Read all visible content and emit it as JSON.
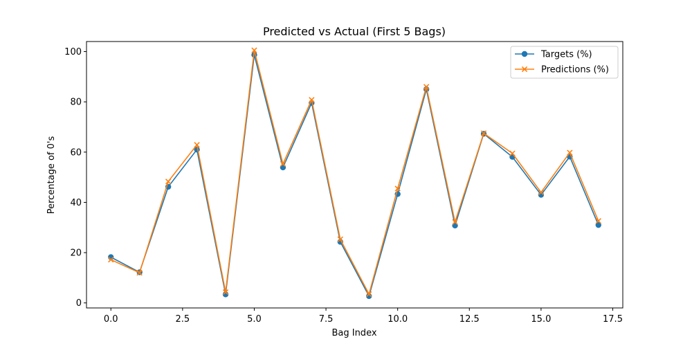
{
  "chart_data": {
    "type": "line",
    "title": "Predicted vs Actual (First 5 Bags)",
    "xlabel": "Bag Index",
    "ylabel": "Percentage of 0's",
    "xlim": [
      -0.85,
      17.85
    ],
    "ylim": [
      -2,
      104
    ],
    "xticks": [
      0.0,
      2.5,
      5.0,
      7.5,
      10.0,
      12.5,
      15.0,
      17.5
    ],
    "xtick_labels": [
      "0.0",
      "2.5",
      "5.0",
      "7.5",
      "10.0",
      "12.5",
      "15.0",
      "17.5"
    ],
    "yticks": [
      0,
      20,
      40,
      60,
      80,
      100
    ],
    "ytick_labels": [
      "0",
      "20",
      "40",
      "60",
      "80",
      "100"
    ],
    "grid": false,
    "legend_position": "top-right",
    "x": [
      0,
      1,
      2,
      3,
      4,
      5,
      6,
      7,
      8,
      9,
      10,
      11,
      12,
      13,
      14,
      15,
      16,
      17
    ],
    "series": [
      {
        "name": "Targets (%)",
        "marker": "circle",
        "color": "#1f77b4",
        "values": [
          18.2,
          12.2,
          46.2,
          61.0,
          3.4,
          98.7,
          53.9,
          79.6,
          24.3,
          2.7,
          43.3,
          85.0,
          30.8,
          67.3,
          58.1,
          43.0,
          58.2,
          31.0
        ]
      },
      {
        "name": "Predictions (%)",
        "marker": "x",
        "color": "#ff7f0e",
        "values": [
          17.2,
          12.0,
          48.3,
          62.9,
          4.3,
          100.5,
          55.3,
          80.8,
          25.3,
          3.5,
          45.5,
          86.0,
          32.2,
          67.5,
          59.5,
          44.0,
          59.8,
          32.6
        ]
      }
    ]
  }
}
